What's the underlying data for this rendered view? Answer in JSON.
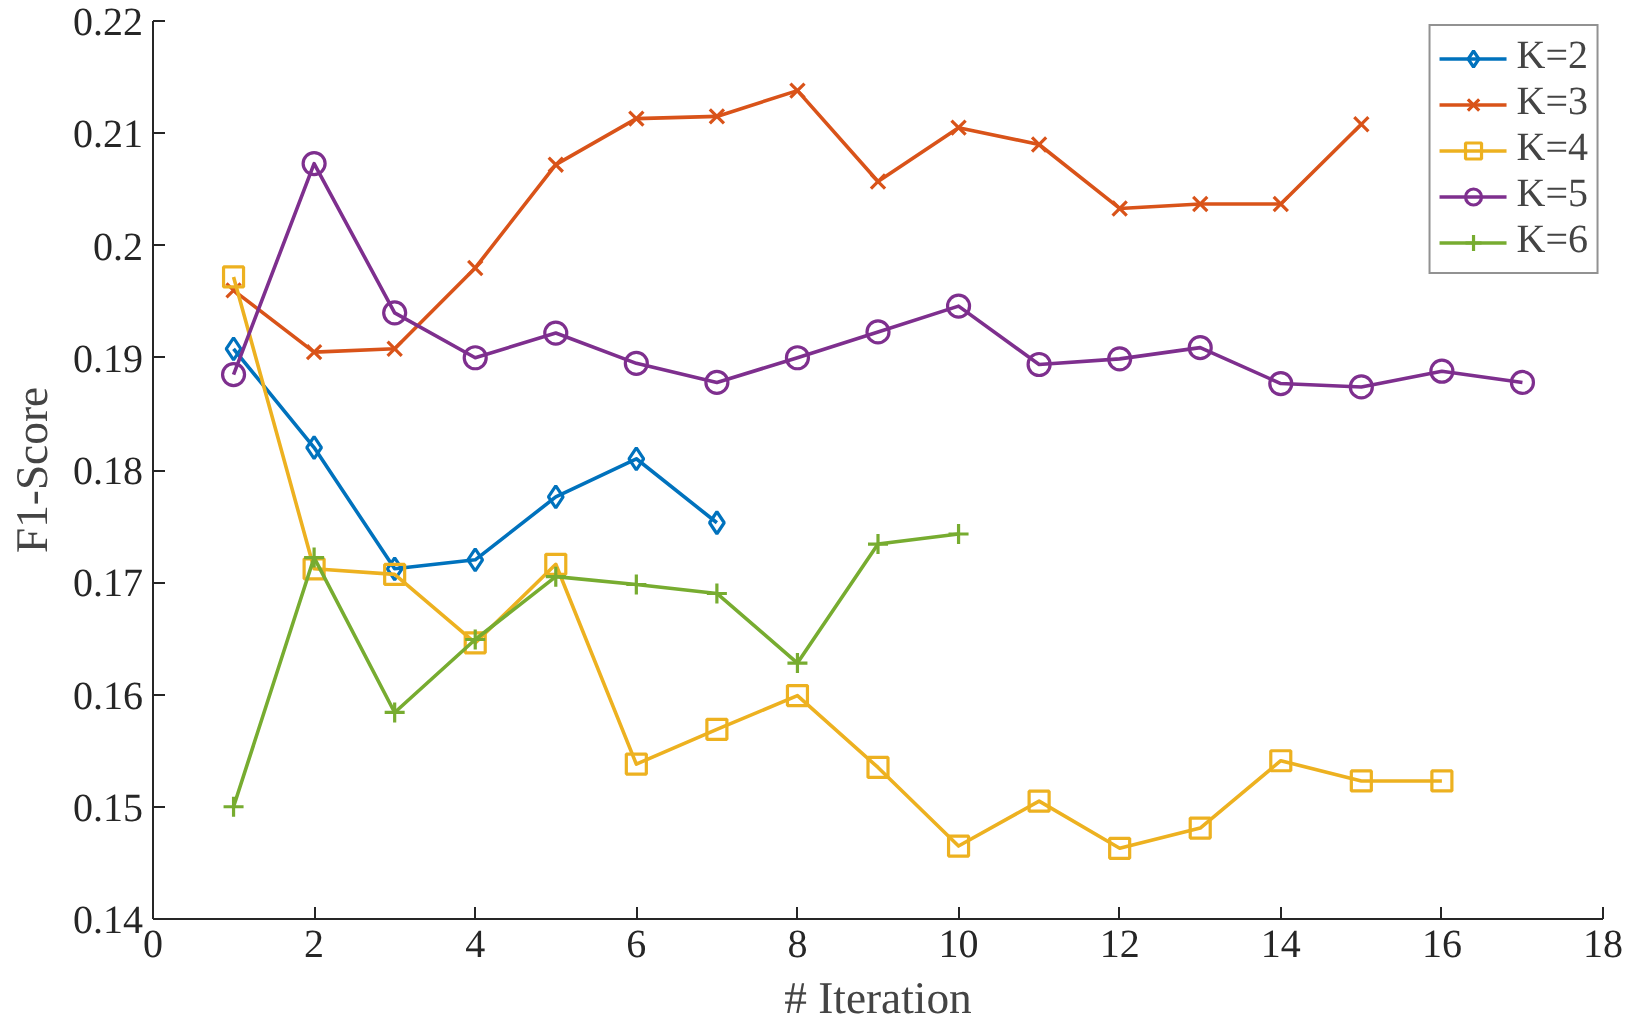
{
  "chart_data": {
    "type": "line",
    "xlabel": "# Iteration",
    "ylabel": "F1-Score",
    "x": [
      1,
      2,
      3,
      4,
      5,
      6,
      7,
      8,
      9,
      10,
      11,
      12,
      13,
      14,
      15,
      16,
      17
    ],
    "xlim": [
      0,
      18
    ],
    "xticks": [
      0,
      2,
      4,
      6,
      8,
      10,
      12,
      14,
      16,
      18
    ],
    "ylim": [
      0.14,
      0.22
    ],
    "yticks": [
      0.14,
      0.15,
      0.16,
      0.17,
      0.18,
      0.19,
      0.2,
      0.21,
      0.22
    ],
    "grid": false,
    "legend": "top right",
    "line_style": "solid",
    "series": [
      {
        "name": "K=2",
        "color": "#0072bd",
        "marker": "diamond",
        "values": [
          0.1908,
          0.182,
          0.1712,
          0.172,
          0.1776,
          0.181,
          0.1753,
          null,
          null,
          null,
          null,
          null,
          null,
          null,
          null,
          null,
          null
        ]
      },
      {
        "name": "K=3",
        "color": "#d95319",
        "marker": "cross",
        "values": [
          0.196,
          0.1905,
          0.1908,
          0.198,
          0.2072,
          0.2113,
          0.2115,
          0.2138,
          0.2057,
          0.2105,
          0.209,
          0.2033,
          0.2037,
          0.2037,
          0.2108,
          null,
          null
        ]
      },
      {
        "name": "K=4",
        "color": "#edb120",
        "marker": "square",
        "values": [
          0.1972,
          0.1712,
          0.1707,
          0.1646,
          0.1716,
          0.1538,
          0.1569,
          0.1599,
          0.1535,
          0.1465,
          0.1505,
          0.1463,
          0.1481,
          0.1541,
          0.1523,
          0.1523,
          null
        ]
      },
      {
        "name": "K=5",
        "color": "#7e2f8e",
        "marker": "circle",
        "values": [
          0.1885,
          0.2073,
          0.194,
          0.19,
          0.1922,
          0.1895,
          0.1878,
          0.19,
          0.1923,
          0.1946,
          0.1894,
          0.1899,
          0.1909,
          0.1877,
          0.1874,
          0.1888,
          0.1878
        ]
      },
      {
        "name": "K=6",
        "color": "#77ac30",
        "marker": "cross",
        "values": [
          0.15,
          0.1722,
          0.1584,
          0.1649,
          0.1705,
          0.1698,
          0.169,
          0.1628,
          0.1734,
          0.1743,
          null,
          null,
          null,
          null,
          null,
          null,
          null
        ]
      }
    ]
  }
}
